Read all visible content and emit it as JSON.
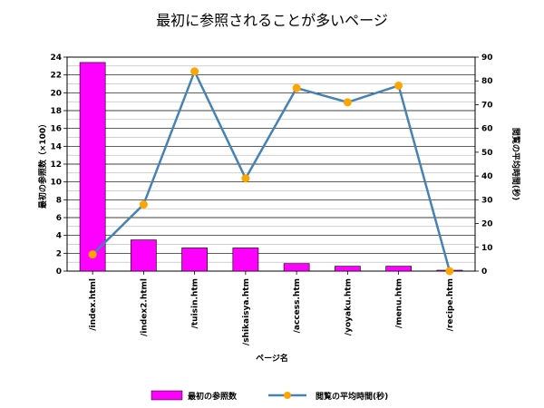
{
  "chart_data": {
    "type": "bar",
    "title": "最初に参照されることが多いページ",
    "xlabel": "ページ名",
    "ylabel": "最初の参照数（×100）",
    "y2label": "閲覧の平均時間(秒)",
    "categories": [
      "/index.html",
      "/index2.html",
      "/tuisin.htm",
      "/shikaisya.htm",
      "/access.htm",
      "/yoyaku.htm",
      "/menu.htm",
      "/recipe.htm"
    ],
    "ylim": [
      0,
      24
    ],
    "y2lim": [
      0,
      90
    ],
    "yticks": [
      "0",
      "2",
      "4",
      "6",
      "8",
      "10",
      "12",
      "14",
      "16",
      "18",
      "20",
      "22",
      "24"
    ],
    "y2ticks": [
      "0",
      "10",
      "20",
      "30",
      "40",
      "50",
      "60",
      "70",
      "80",
      "90"
    ],
    "grid": true,
    "legend_position": "bottom",
    "series": [
      {
        "name": "最初の参照数",
        "type": "bar",
        "axis": "left",
        "color": "#ff00ff",
        "values": [
          23.4,
          3.5,
          2.6,
          2.6,
          0.85,
          0.55,
          0.55,
          0.1
        ]
      },
      {
        "name": "閲覧の平均時間(秒)",
        "type": "line",
        "axis": "right",
        "color": "#4682b4",
        "marker_color": "#ffa500",
        "values": [
          7,
          28,
          84,
          39,
          77,
          71,
          78,
          0
        ]
      }
    ]
  }
}
